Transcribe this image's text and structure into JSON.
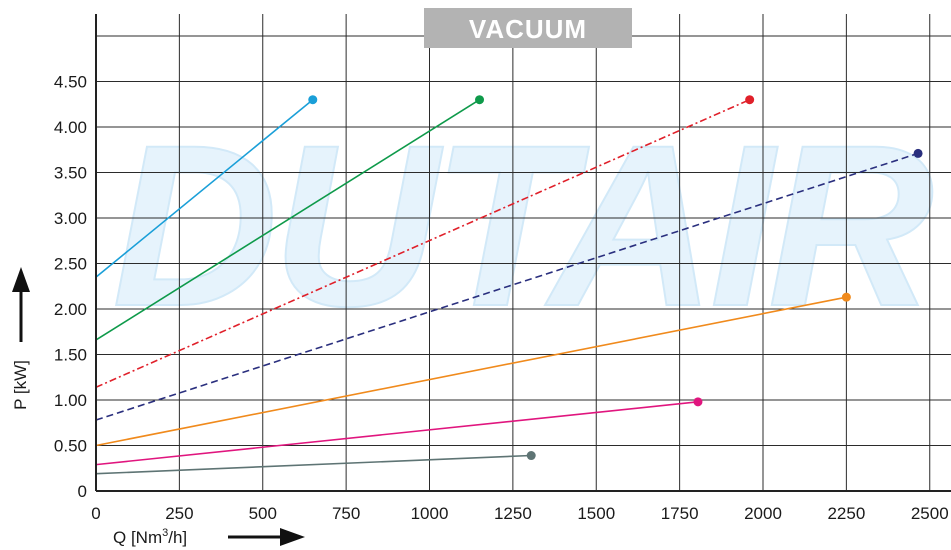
{
  "chart_data": {
    "type": "line",
    "title": "VACUUM",
    "xlabel": "Q [Nm",
    "xlabel_sup": "3",
    "xlabel_tail": "/h]",
    "ylabel": "P [kW]",
    "watermark": "DUTAIR",
    "xlim": [
      0,
      2550
    ],
    "ylim": [
      0,
      5.05
    ],
    "x_ticks": [
      0,
      250,
      500,
      750,
      1000,
      1250,
      1500,
      1750,
      2000,
      2250,
      2500
    ],
    "x_tick_labels": [
      "0",
      "250",
      "500",
      "750",
      "1000",
      "1250",
      "1500",
      "1750",
      "2000",
      "2250",
      "2500"
    ],
    "y_ticks": [
      0,
      0.5,
      1.0,
      1.5,
      2.0,
      2.5,
      3.0,
      3.5,
      4.0,
      4.5
    ],
    "y_tick_labels": [
      "0",
      "0.50",
      "1.00",
      "1.50",
      "2.00",
      "2.50",
      "3.00",
      "3.50",
      "4.00",
      "4.50"
    ],
    "x_grid": [
      0,
      250,
      500,
      750,
      1000,
      1250,
      1500,
      1750,
      2000,
      2250,
      2500
    ],
    "y_grid": [
      0.5,
      1.0,
      1.5,
      2.0,
      2.5,
      3.0,
      3.5,
      4.0,
      4.5,
      5.0
    ],
    "grid": true,
    "series": [
      {
        "color": "#1a9fd8",
        "dash": "solid",
        "x": [
          0,
          650
        ],
        "y": [
          2.35,
          4.3
        ]
      },
      {
        "color": "#0e9a4a",
        "dash": "solid",
        "x": [
          0,
          1150
        ],
        "y": [
          1.66,
          4.3
        ]
      },
      {
        "color": "#e0202a",
        "dash": "dashdot",
        "x": [
          0,
          1960
        ],
        "y": [
          1.14,
          4.3
        ]
      },
      {
        "color": "#2a2f7e",
        "dash": "dashed",
        "x": [
          0,
          2465
        ],
        "y": [
          0.78,
          3.71
        ]
      },
      {
        "color": "#f08a1c",
        "dash": "solid",
        "x": [
          0,
          2250
        ],
        "y": [
          0.5,
          2.13
        ]
      },
      {
        "color": "#e0157e",
        "dash": "solid",
        "x": [
          0,
          1805
        ],
        "y": [
          0.29,
          0.98
        ]
      },
      {
        "color": "#5e7474",
        "dash": "solid",
        "x": [
          0,
          1305
        ],
        "y": [
          0.19,
          0.39
        ]
      }
    ]
  }
}
